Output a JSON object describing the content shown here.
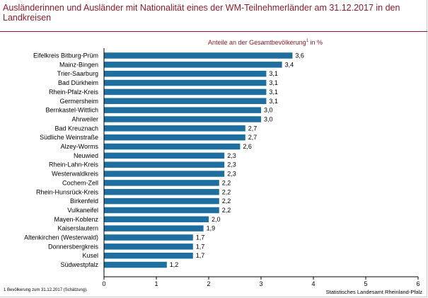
{
  "header": {
    "title": "Ausländerinnen und Ausländer mit Nationalität eines der WM-Teilnehmerländer am 31.12.2017 in den Landkreisen"
  },
  "colors": {
    "bar": "#1e6f9f",
    "title": "#8b1b2b",
    "axis": "#000000"
  },
  "chart_data": {
    "type": "bar",
    "orientation": "horizontal",
    "subtitle": "Anteile an der Gesamtbevölkerung",
    "subtitle_sup": "1",
    "subtitle_unit": "in %",
    "categories": [
      "Eifelkreis Bitburg-Prüm",
      "Mainz-Bingen",
      "Trier-Saarburg",
      "Bad Dürkheim",
      "Rhein-Pfalz-Kreis",
      "Germersheim",
      "Bernkastel-Wittlich",
      "Ahrweiler",
      "Bad Kreuznach",
      "Südliche Weinstraße",
      "Alzey-Worms",
      "Neuwied",
      "Rhein-Lahn-Kreis",
      "Westerwaldkreis",
      "Cochem-Zell",
      "Rhein-Hunsrück-Kreis",
      "Birkenfeld",
      "Vulkaneifel",
      "Mayen-Koblenz",
      "Kaiserslautern",
      "Altenkirchen (Westerwald)",
      "Donnersbergkreis",
      "Kusel",
      "Südwestpfalz"
    ],
    "values": [
      3.6,
      3.4,
      3.1,
      3.1,
      3.1,
      3.1,
      3.0,
      3.0,
      2.7,
      2.7,
      2.6,
      2.3,
      2.3,
      2.3,
      2.2,
      2.2,
      2.2,
      2.2,
      2.0,
      1.9,
      1.7,
      1.7,
      1.7,
      1.2
    ],
    "value_labels": [
      "3,6",
      "3,4",
      "3,1",
      "3,1",
      "3,1",
      "3,1",
      "3,0",
      "3,0",
      "2,7",
      "2,7",
      "2,6",
      "2,3",
      "2,3",
      "2,3",
      "2,2",
      "2,2",
      "2,2",
      "2,2",
      "2,0",
      "1,9",
      "1,7",
      "1,7",
      "1,7",
      "1,2"
    ],
    "xlim": [
      0,
      6
    ],
    "xticks": [
      "0",
      "1",
      "2",
      "3",
      "4",
      "5",
      "6"
    ],
    "grid": false
  },
  "footer": {
    "footnote": "1 Bevölkerung zum 31.12.2017 (Schätzung).",
    "source": "Statistisches Landesamt Rheinland-Pfalz"
  }
}
